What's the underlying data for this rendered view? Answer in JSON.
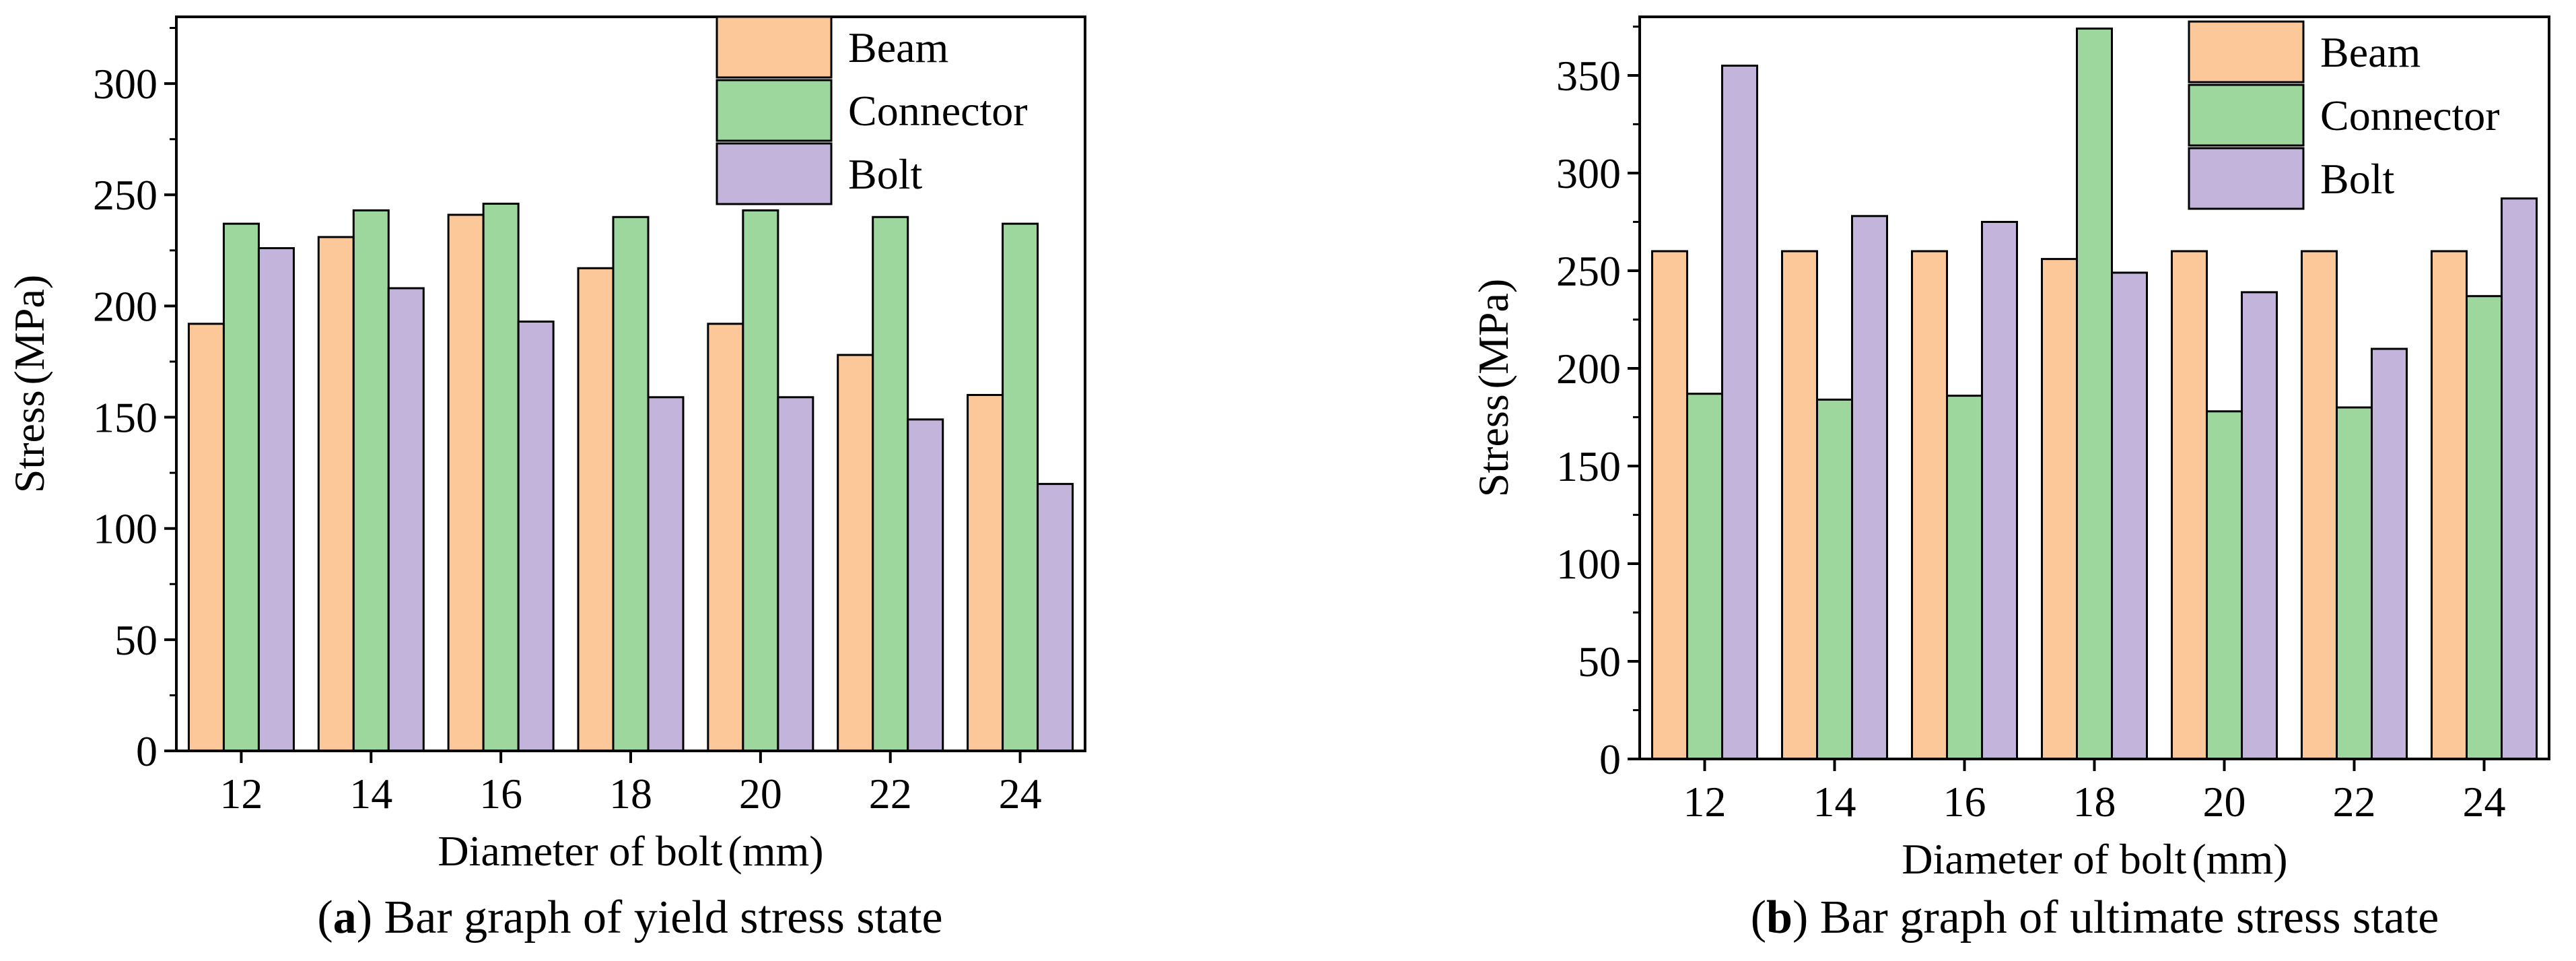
{
  "chart_data": [
    {
      "type": "bar",
      "panel_letter": "a",
      "caption": "Bar graph of yield stress state",
      "xlabel": "Diameter of bolt",
      "xunit": "(mm)",
      "ylabel": "Stress",
      "yunit": "(MPa)",
      "categories": [
        "12",
        "14",
        "16",
        "18",
        "20",
        "22",
        "24"
      ],
      "ylim": [
        0,
        330
      ],
      "yticks": [
        "0",
        "50",
        "100",
        "150",
        "200",
        "250",
        "300"
      ],
      "legend_position": "top-right",
      "grid": false,
      "series": [
        {
          "name": "Beam",
          "color": "#FCC89A",
          "values": [
            192,
            231,
            241,
            217,
            192,
            178,
            160
          ]
        },
        {
          "name": "Connector",
          "color": "#9ED79E",
          "values": [
            237,
            243,
            246,
            240,
            243,
            240,
            237
          ]
        },
        {
          "name": "Bolt",
          "color": "#C3B4DB",
          "values": [
            226,
            208,
            193,
            159,
            159,
            149,
            120
          ]
        }
      ]
    },
    {
      "type": "bar",
      "panel_letter": "b",
      "caption": "Bar graph of ultimate stress state",
      "xlabel": "Diameter of bolt",
      "xunit": "(mm)",
      "ylabel": "Stress",
      "yunit": "(MPa)",
      "categories": [
        "12",
        "14",
        "16",
        "18",
        "20",
        "22",
        "24"
      ],
      "ylim": [
        0,
        380
      ],
      "yticks": [
        "0",
        "50",
        "100",
        "150",
        "200",
        "250",
        "300",
        "350"
      ],
      "legend_position": "top-right",
      "grid": false,
      "series": [
        {
          "name": "Beam",
          "color": "#FCC89A",
          "values": [
            260,
            260,
            260,
            256,
            260,
            260,
            260
          ]
        },
        {
          "name": "Connector",
          "color": "#9ED79E",
          "values": [
            187,
            184,
            186,
            374,
            178,
            180,
            237
          ]
        },
        {
          "name": "Bolt",
          "color": "#C3B4DB",
          "values": [
            355,
            278,
            275,
            249,
            239,
            210,
            287
          ]
        }
      ]
    }
  ]
}
